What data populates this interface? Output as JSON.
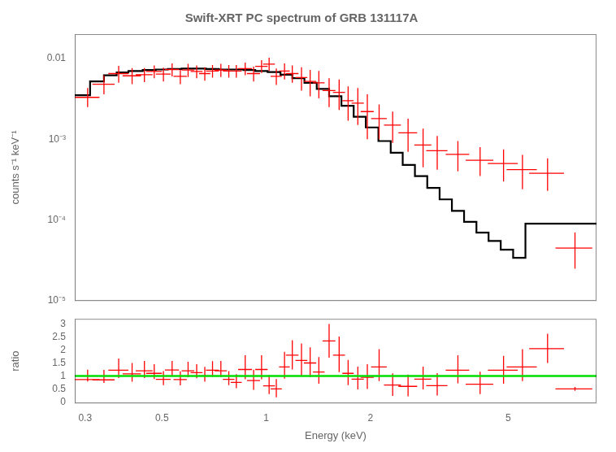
{
  "chart_data": [
    {
      "type": "errorbar",
      "title": "Swift-XRT PC spectrum of GRB 131117A",
      "ylabel": "counts s⁻¹ keV⁻¹",
      "log": true,
      "xlim": [
        0.28,
        9.0
      ],
      "ylim": [
        1e-05,
        0.02
      ],
      "xticks": [
        0.3,
        0.5,
        1.0,
        2.0,
        5.0
      ],
      "yticks": [
        {
          "value": 1e-05,
          "label": "10⁻⁵"
        },
        {
          "value": 0.0001,
          "label": "10⁻⁴"
        },
        {
          "value": 0.001,
          "label": "10⁻³"
        },
        0.01
      ],
      "grid": false,
      "tick_labels": "y",
      "series": [
        {
          "type": "step",
          "bins": [
            0.28,
            0.31,
            0.34,
            0.37,
            0.4,
            0.44,
            0.48,
            0.52,
            0.57,
            0.62,
            0.67,
            0.73,
            0.79,
            0.86,
            0.93,
            1.01,
            1.1,
            1.19,
            1.29,
            1.4,
            1.52,
            1.65,
            1.79,
            1.94,
            2.11,
            2.29,
            2.48,
            2.69,
            2.92,
            3.17,
            3.44,
            3.73,
            4.05,
            4.39,
            4.76,
            5.17,
            5.61,
            9.0
          ],
          "values": [
            0.0035,
            0.0052,
            0.0062,
            0.0067,
            0.007,
            0.0072,
            0.0073,
            0.0074,
            0.0075,
            0.0075,
            0.0074,
            0.0073,
            0.0073,
            0.0072,
            0.007,
            0.0068,
            0.0063,
            0.0057,
            0.005,
            0.0042,
            0.0034,
            0.0026,
            0.0019,
            0.0014,
            0.00095,
            0.00068,
            0.00048,
            0.00035,
            0.00025,
            0.00018,
            0.00013,
            9.5e-05,
            7e-05,
            5.5e-05,
            4.3e-05,
            3.4e-05,
            9e-05
          ],
          "color": "#000000"
        },
        {
          "type": "errorbar",
          "marker": "none",
          "color": "#ff0000",
          "x": [
            0.305,
            0.34,
            0.375,
            0.41,
            0.445,
            0.475,
            0.505,
            0.535,
            0.565,
            0.595,
            0.63,
            0.665,
            0.7,
            0.74,
            0.78,
            0.82,
            0.87,
            0.92,
            0.97,
            1.02,
            1.07,
            1.13,
            1.19,
            1.265,
            1.34,
            1.42,
            1.52,
            1.625,
            1.725,
            1.84,
            1.96,
            2.12,
            2.32,
            2.57,
            2.84,
            3.12,
            3.58,
            4.15,
            4.85,
            5.5,
            6.5,
            7.8
          ],
          "values": [
            0.0033,
            0.0048,
            0.0065,
            0.0061,
            0.0063,
            0.0069,
            0.0064,
            0.0073,
            0.006,
            0.0072,
            0.0069,
            0.0065,
            0.007,
            0.0072,
            0.007,
            0.007,
            0.0075,
            0.0065,
            0.008,
            0.0085,
            0.006,
            0.007,
            0.0065,
            0.0058,
            0.0052,
            0.005,
            0.004,
            0.0038,
            0.003,
            0.0028,
            0.0022,
            0.0018,
            0.0015,
            0.0012,
            0.00085,
            0.00072,
            0.00065,
            0.00055,
            0.0005,
            0.00042,
            0.00038,
            4.5e-05
          ],
          "xerr_lo": [
            0.025,
            0.025,
            0.025,
            0.025,
            0.025,
            0.025,
            0.025,
            0.025,
            0.025,
            0.025,
            0.025,
            0.025,
            0.03,
            0.03,
            0.03,
            0.03,
            0.04,
            0.04,
            0.04,
            0.04,
            0.04,
            0.04,
            0.05,
            0.05,
            0.055,
            0.055,
            0.065,
            0.065,
            0.065,
            0.075,
            0.085,
            0.11,
            0.13,
            0.16,
            0.16,
            0.22,
            0.28,
            0.38,
            0.48,
            0.55,
            0.75,
            0.95
          ],
          "xerr_hi": [
            0.025,
            0.025,
            0.025,
            0.025,
            0.025,
            0.025,
            0.025,
            0.025,
            0.025,
            0.025,
            0.025,
            0.025,
            0.03,
            0.03,
            0.03,
            0.03,
            0.04,
            0.04,
            0.04,
            0.04,
            0.04,
            0.04,
            0.05,
            0.05,
            0.055,
            0.055,
            0.065,
            0.065,
            0.065,
            0.075,
            0.085,
            0.11,
            0.13,
            0.16,
            0.16,
            0.22,
            0.28,
            0.38,
            0.48,
            0.55,
            0.75,
            0.95
          ],
          "yerr_lo": [
            0.0008,
            0.0012,
            0.0015,
            0.0013,
            0.0012,
            0.0012,
            0.0012,
            0.0013,
            0.0012,
            0.0013,
            0.0012,
            0.0012,
            0.0012,
            0.0013,
            0.0012,
            0.0012,
            0.0013,
            0.0013,
            0.0014,
            0.0015,
            0.0013,
            0.0015,
            0.0015,
            0.0018,
            0.0018,
            0.0018,
            0.0015,
            0.0015,
            0.0013,
            0.0013,
            0.0012,
            0.0008,
            0.0006,
            0.0005,
            0.0004,
            0.0003,
            0.00025,
            0.0002,
            0.0002,
            0.00018,
            0.00015,
            2e-05
          ],
          "yerr_hi": [
            0.001,
            0.0014,
            0.0016,
            0.0015,
            0.0013,
            0.0013,
            0.0013,
            0.0014,
            0.0013,
            0.0014,
            0.0013,
            0.0013,
            0.0013,
            0.0014,
            0.0013,
            0.0013,
            0.0014,
            0.0014,
            0.0015,
            0.0017,
            0.0015,
            0.0017,
            0.0017,
            0.002,
            0.002,
            0.002,
            0.0017,
            0.0017,
            0.0015,
            0.0015,
            0.0014,
            0.0009,
            0.0007,
            0.0006,
            0.0005,
            0.00038,
            0.0003,
            0.00025,
            0.00025,
            0.00022,
            0.0002,
            2.5e-05
          ]
        }
      ]
    },
    {
      "type": "errorbar",
      "xlabel": "Energy (keV)",
      "ylabel": "ratio",
      "log": "x",
      "xlim": [
        0.28,
        9.0
      ],
      "ylim": [
        -0.05,
        3.2
      ],
      "xticks": [
        0.3,
        0.5,
        1.0,
        2.0,
        5.0
      ],
      "yticks": [
        0,
        0.5,
        1.0,
        1.5,
        2.0,
        2.5,
        3.0
      ],
      "grid": false,
      "series": [
        {
          "type": "errorbar",
          "marker": "none",
          "color": "#ff0000",
          "x": [
            0.305,
            0.34,
            0.375,
            0.41,
            0.445,
            0.475,
            0.505,
            0.535,
            0.565,
            0.595,
            0.63,
            0.665,
            0.7,
            0.74,
            0.78,
            0.82,
            0.87,
            0.92,
            0.97,
            1.02,
            1.07,
            1.13,
            1.19,
            1.265,
            1.34,
            1.42,
            1.52,
            1.625,
            1.725,
            1.84,
            1.96,
            2.12,
            2.32,
            2.57,
            2.84,
            3.12,
            3.58,
            4.15,
            4.85,
            5.5,
            6.5,
            7.8
          ],
          "values": [
            0.86,
            0.85,
            1.22,
            1.08,
            1.2,
            1.1,
            0.87,
            1.23,
            0.86,
            1.2,
            1.13,
            1.0,
            1.22,
            1.2,
            0.87,
            0.75,
            1.25,
            0.82,
            1.25,
            0.62,
            0.5,
            1.35,
            1.8,
            1.6,
            1.5,
            1.15,
            2.35,
            1.8,
            1.1,
            0.88,
            0.95,
            1.35,
            0.65,
            0.6,
            0.88,
            0.63,
            1.22,
            0.68,
            1.22,
            1.35,
            2.05,
            0.5
          ],
          "xerr_lo": [
            0.025,
            0.025,
            0.025,
            0.025,
            0.025,
            0.025,
            0.025,
            0.025,
            0.025,
            0.025,
            0.025,
            0.025,
            0.03,
            0.03,
            0.03,
            0.03,
            0.04,
            0.04,
            0.04,
            0.04,
            0.04,
            0.04,
            0.05,
            0.05,
            0.055,
            0.055,
            0.065,
            0.065,
            0.065,
            0.075,
            0.085,
            0.11,
            0.13,
            0.16,
            0.16,
            0.22,
            0.28,
            0.38,
            0.48,
            0.55,
            0.75,
            0.95
          ],
          "xerr_hi": [
            0.025,
            0.025,
            0.025,
            0.025,
            0.025,
            0.025,
            0.025,
            0.025,
            0.025,
            0.025,
            0.025,
            0.025,
            0.03,
            0.03,
            0.03,
            0.03,
            0.04,
            0.04,
            0.04,
            0.04,
            0.04,
            0.04,
            0.05,
            0.05,
            0.055,
            0.055,
            0.065,
            0.065,
            0.065,
            0.075,
            0.085,
            0.11,
            0.13,
            0.16,
            0.16,
            0.22,
            0.28,
            0.38,
            0.48,
            0.55,
            0.75,
            0.95
          ],
          "yerr_lo": [
            0.07,
            0.12,
            0.3,
            0.3,
            0.28,
            0.22,
            0.22,
            0.25,
            0.22,
            0.25,
            0.22,
            0.22,
            0.25,
            0.25,
            0.22,
            0.22,
            0.38,
            0.35,
            0.38,
            0.32,
            0.32,
            0.45,
            0.55,
            0.6,
            0.55,
            0.45,
            0.65,
            0.65,
            0.45,
            0.4,
            0.45,
            0.55,
            0.42,
            0.38,
            0.4,
            0.38,
            0.5,
            0.38,
            0.52,
            0.55,
            0.55,
            0.07
          ],
          "yerr_hi": [
            0.38,
            0.38,
            0.45,
            0.42,
            0.38,
            0.35,
            0.32,
            0.35,
            0.32,
            0.35,
            0.32,
            0.35,
            0.35,
            0.38,
            0.32,
            0.32,
            0.55,
            0.42,
            0.55,
            0.42,
            0.38,
            0.58,
            0.58,
            0.65,
            0.6,
            0.58,
            0.65,
            0.72,
            0.52,
            0.48,
            0.5,
            0.68,
            0.45,
            0.45,
            0.48,
            0.48,
            0.58,
            0.48,
            0.55,
            0.68,
            0.58,
            0.08
          ]
        },
        {
          "type": "hline",
          "values": [
            1.0
          ],
          "color": "#00dd00"
        }
      ]
    }
  ]
}
